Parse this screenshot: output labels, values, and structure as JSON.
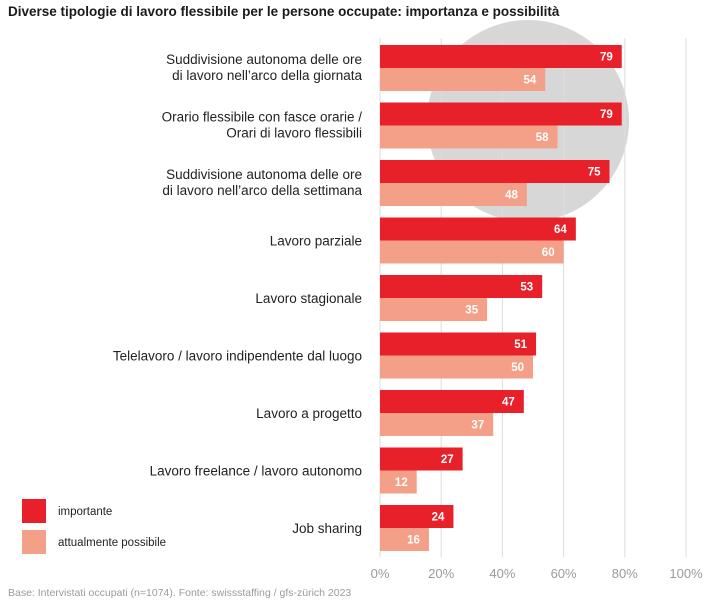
{
  "title": "Diverse tipologie di lavoro flessibile per le persone occupate: importanza e possibilità",
  "source": "Base: Intervistati occupati (n=1074). Fonte: swissstaffing / gfs-zürich 2023",
  "colors": {
    "importante": "#e8202a",
    "attualmente_possibile": "#f4a088",
    "highlight": "#cccccc",
    "grid": "#dddddd",
    "tick": "#9a9a9a"
  },
  "legend": [
    {
      "label": "importante",
      "color_key": "importante"
    },
    {
      "label": "attualmente possibile",
      "color_key": "attualmente_possibile"
    }
  ],
  "chart_data": {
    "type": "bar",
    "orientation": "horizontal",
    "categories": [
      [
        "Suddivisione autonoma delle ore",
        "di lavoro nell’arco della giornata"
      ],
      [
        "Orario flessibile con fasce orarie /",
        "Orari di lavoro flessibili"
      ],
      [
        "Suddivisione autonoma delle ore",
        "di lavoro nell’arco della settimana"
      ],
      [
        "Lavoro parziale"
      ],
      [
        "Lavoro stagionale"
      ],
      [
        "Telelavoro / lavoro indipendente dal luogo"
      ],
      [
        "Lavoro a progetto"
      ],
      [
        "Lavoro freelance / lavoro autonomo"
      ],
      [
        "Job sharing"
      ]
    ],
    "series": [
      {
        "name": "importante",
        "values": [
          79,
          79,
          75,
          64,
          53,
          51,
          47,
          27,
          24
        ]
      },
      {
        "name": "attualmente possibile",
        "values": [
          54,
          58,
          48,
          60,
          35,
          50,
          37,
          12,
          16
        ]
      }
    ],
    "xlim": [
      0,
      100
    ],
    "xticks": [
      "0%",
      "20%",
      "40%",
      "60%",
      "80%",
      "100%"
    ],
    "xlabel": "",
    "ylabel": "",
    "grid": true,
    "legend_position": "bottom-left",
    "highlight": "grey circle behind the top three categories"
  }
}
